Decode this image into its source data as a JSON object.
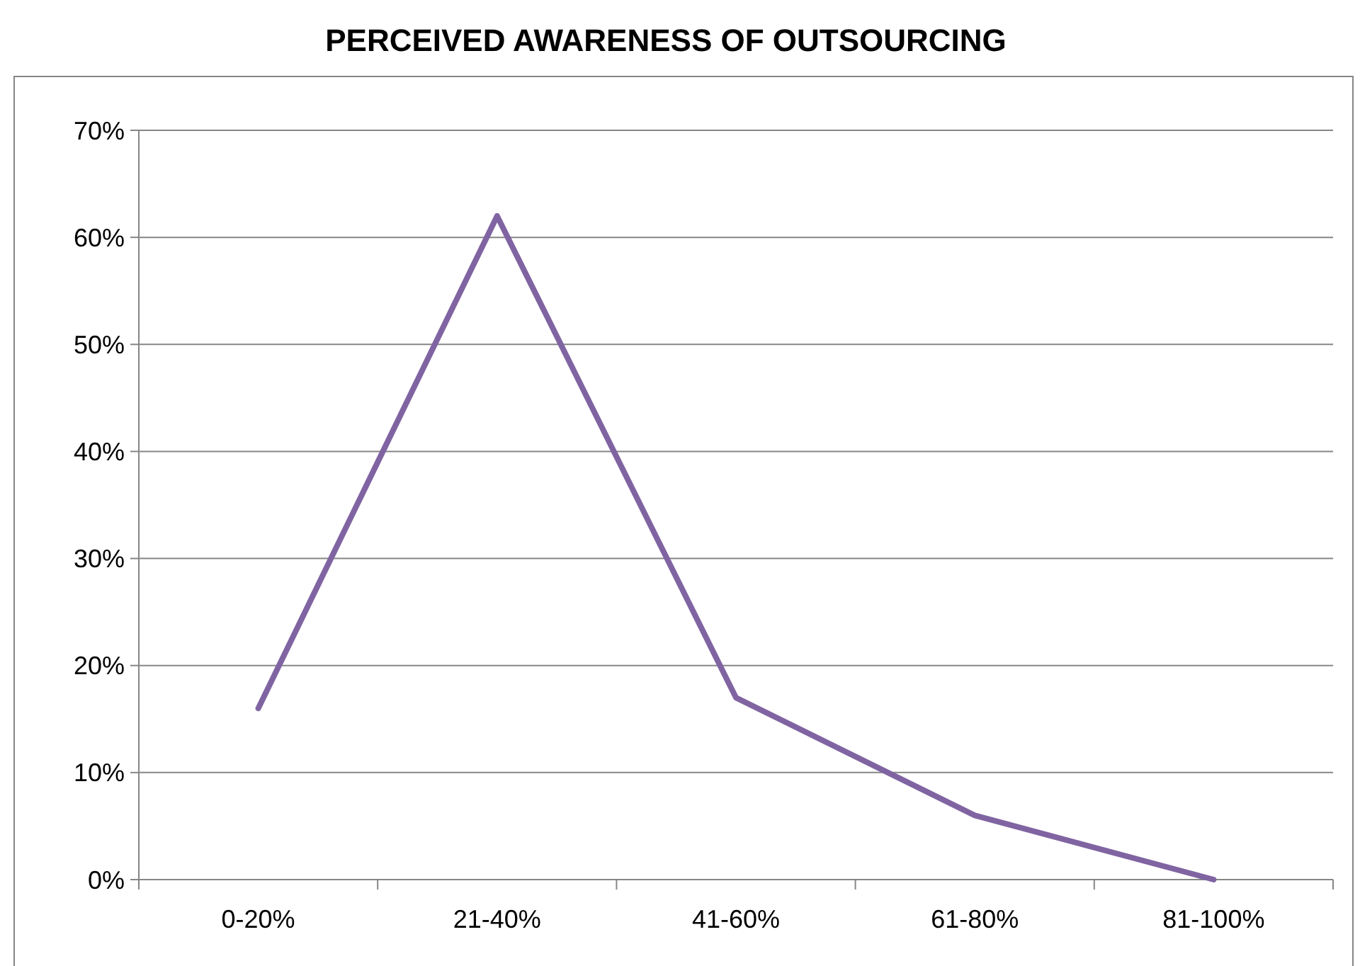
{
  "chart_data": {
    "type": "line",
    "title": "PERCEIVED AWARENESS OF OUTSOURCING",
    "categories": [
      "0-20%",
      "21-40%",
      "41-60%",
      "61-80%",
      "81-100%"
    ],
    "series": [
      {
        "color": "#8064a2",
        "values": [
          16,
          62,
          17,
          6,
          0
        ]
      }
    ],
    "ylim": [
      0,
      70
    ],
    "yticks": [
      {
        "value": 0,
        "label": "0%"
      },
      {
        "value": 10,
        "label": "10%"
      },
      {
        "value": 20,
        "label": "20%"
      },
      {
        "value": 30,
        "label": "30%"
      },
      {
        "value": 40,
        "label": "40%"
      },
      {
        "value": 50,
        "label": "50%"
      },
      {
        "value": 60,
        "label": "60%"
      },
      {
        "value": 70,
        "label": "70%"
      }
    ],
    "grid": "y",
    "marker": "none",
    "line_style": "solid"
  }
}
